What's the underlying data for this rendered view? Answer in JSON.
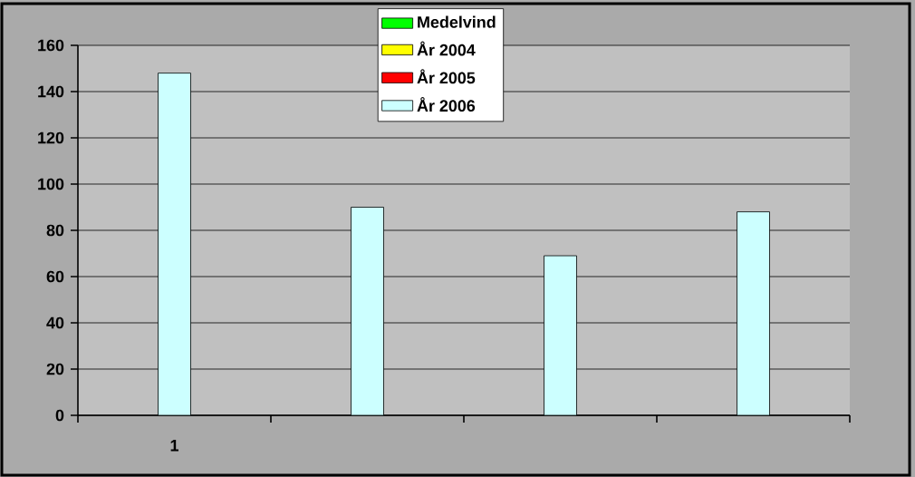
{
  "chart_data": {
    "type": "bar",
    "categories": [
      "1",
      null,
      null,
      null
    ],
    "series": [
      {
        "name": "Medelvind",
        "color": "#00ff00",
        "values": [
          null,
          null,
          null,
          null
        ]
      },
      {
        "name": "År 2004",
        "color": "#ffff00",
        "values": [
          null,
          null,
          null,
          null
        ]
      },
      {
        "name": "År 2005",
        "color": "#ff0000",
        "values": [
          null,
          null,
          null,
          null
        ]
      },
      {
        "name": "År 2006",
        "color": "#ccffff",
        "values": [
          148,
          90,
          69,
          88
        ]
      }
    ],
    "ylim": [
      0,
      160
    ],
    "yticks": [
      0,
      20,
      40,
      60,
      80,
      100,
      120,
      140,
      160
    ],
    "grid": "y",
    "legend": "top"
  }
}
